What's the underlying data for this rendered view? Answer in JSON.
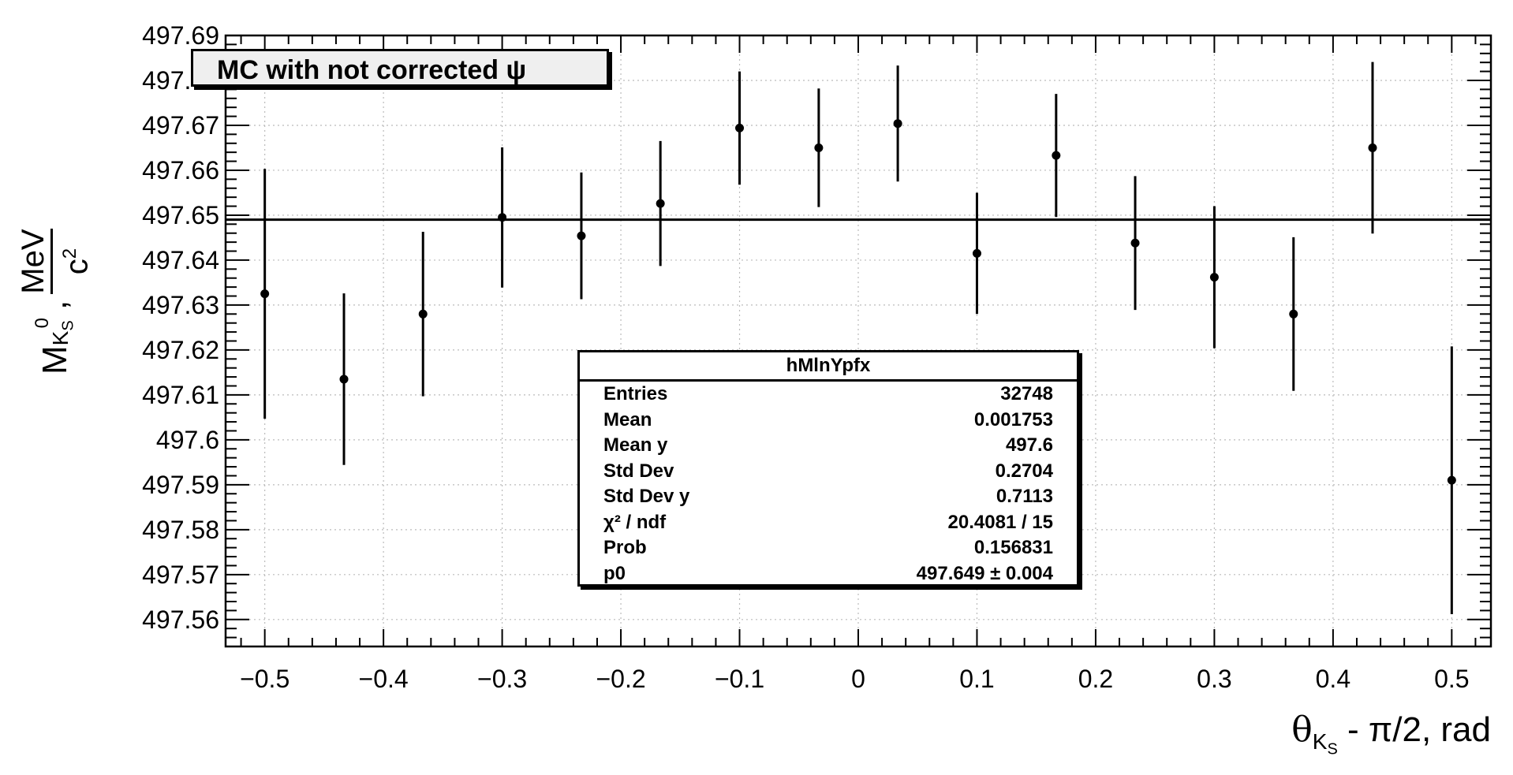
{
  "chart_data": {
    "type": "scatter",
    "title": "MC with not corrected ψ",
    "xlabel": {
      "symbol": "θ",
      "sub": "K",
      "subsub": "S",
      "rest": " - π/2, rad"
    },
    "ylabel": {
      "symbol": "M",
      "sub": "K",
      "subsub": "S",
      "sup": "0",
      "sep": ",",
      "num": "MeV",
      "den": "c",
      "den_sup": "2"
    },
    "xlim": [
      -0.533,
      0.533
    ],
    "ylim": [
      497.554,
      497.69
    ],
    "xticks": [
      -0.5,
      -0.4,
      -0.3,
      -0.2,
      -0.1,
      0,
      0.1,
      0.2,
      0.3,
      0.4,
      0.5
    ],
    "xtick_labels": [
      "−0.5",
      "−0.4",
      "−0.3",
      "−0.2",
      "−0.1",
      "0",
      "0.1",
      "0.2",
      "0.3",
      "0.4",
      "0.5"
    ],
    "yticks": [
      497.56,
      497.57,
      497.58,
      497.59,
      497.6,
      497.61,
      497.62,
      497.63,
      497.64,
      497.65,
      497.66,
      497.67,
      497.68,
      497.69
    ],
    "ytick_labels": [
      "497.56",
      "497.57",
      "497.58",
      "497.59",
      "497.6",
      "497.61",
      "497.62",
      "497.63",
      "497.64",
      "497.65",
      "497.66",
      "497.67",
      "497.68",
      "497.69"
    ],
    "grid": true,
    "fit": {
      "function": "p0",
      "value": 497.649
    },
    "points": [
      {
        "x": -0.5,
        "y": 497.6325,
        "err": 0.0278
      },
      {
        "x": -0.4333,
        "y": 497.6135,
        "err": 0.0191
      },
      {
        "x": -0.3667,
        "y": 497.628,
        "err": 0.0183
      },
      {
        "x": -0.3,
        "y": 497.6495,
        "err": 0.0156
      },
      {
        "x": -0.2333,
        "y": 497.6454,
        "err": 0.0141
      },
      {
        "x": -0.1667,
        "y": 497.6526,
        "err": 0.0139
      },
      {
        "x": -0.1,
        "y": 497.6694,
        "err": 0.0126
      },
      {
        "x": -0.0333,
        "y": 497.665,
        "err": 0.0132
      },
      {
        "x": 0.0333,
        "y": 497.6704,
        "err": 0.0129
      },
      {
        "x": 0.1,
        "y": 497.6415,
        "err": 0.0135
      },
      {
        "x": 0.1667,
        "y": 497.6633,
        "err": 0.0137
      },
      {
        "x": 0.2333,
        "y": 497.6438,
        "err": 0.0149
      },
      {
        "x": 0.3,
        "y": 497.6362,
        "err": 0.0158
      },
      {
        "x": 0.3667,
        "y": 497.628,
        "err": 0.0171
      },
      {
        "x": 0.4333,
        "y": 497.665,
        "err": 0.0191
      },
      {
        "x": 0.5,
        "y": 497.591,
        "err": 0.0298
      }
    ]
  },
  "stats_box": {
    "name": "hMlnYpfx",
    "rows": [
      {
        "key": "Entries",
        "value": "32748"
      },
      {
        "key": "Mean",
        "value": "0.001753"
      },
      {
        "key": "Mean y",
        "value": "497.6"
      },
      {
        "key": "Std Dev",
        "value": "0.2704"
      },
      {
        "key": "Std Dev y",
        "value": "0.7113"
      },
      {
        "key": "χ² / ndf",
        "value": "20.4081 / 15"
      },
      {
        "key": "Prob",
        "value": "0.156831"
      },
      {
        "key": "p0",
        "value": "497.649 ± 0.004"
      }
    ]
  }
}
